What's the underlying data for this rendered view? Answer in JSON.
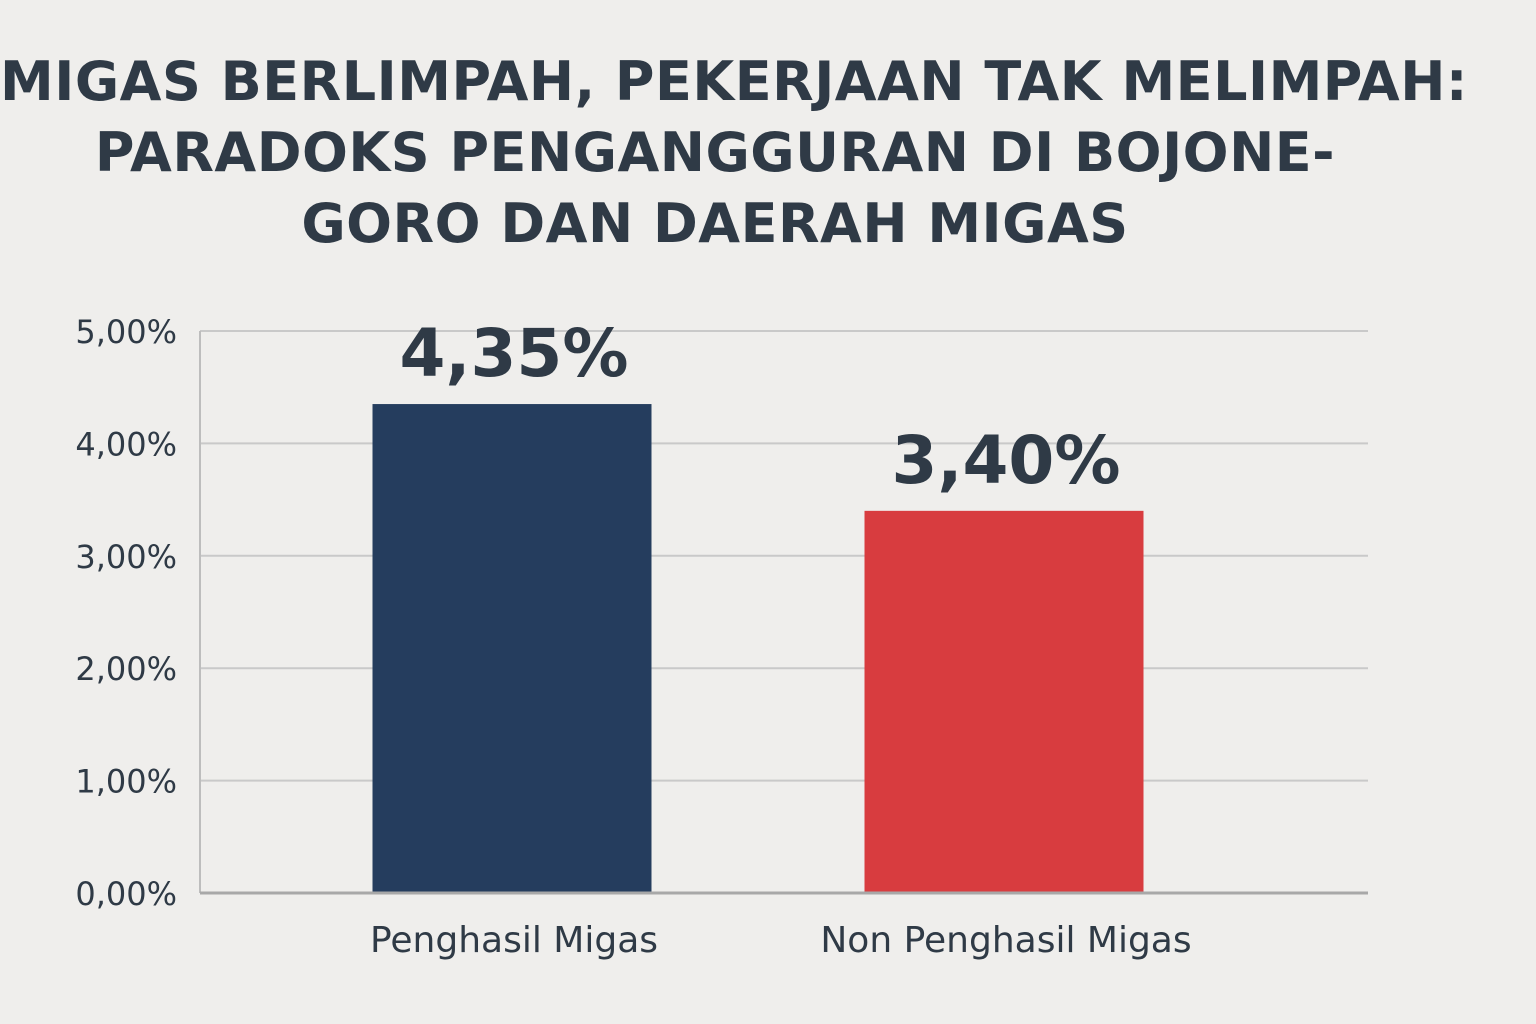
{
  "chart_data": {
    "type": "bar",
    "title_lines": [
      "MIGAS BERLIMPAH, PEKERJAAN TAK MELIMPAH:",
      "PARADOKS PENGANGGURAN DI BOJONE-",
      "GORO DAN DAERAH MIGAS"
    ],
    "categories": [
      "Penghasil Migas",
      "Non Penghasil Migas"
    ],
    "values": [
      4.35,
      3.4
    ],
    "data_labels": [
      "4,35%",
      "3,40%"
    ],
    "bar_colors": [
      "#253d5e",
      "#d83c3f"
    ],
    "yticks": [
      0,
      1,
      2,
      3,
      4,
      5
    ],
    "ytick_labels": [
      "0,00%",
      "1,00%",
      "2,00%",
      "3,00%",
      "4,00%",
      "5,00%"
    ],
    "ylim": [
      0,
      5
    ],
    "grid": true,
    "xlabel": "",
    "ylabel": ""
  }
}
